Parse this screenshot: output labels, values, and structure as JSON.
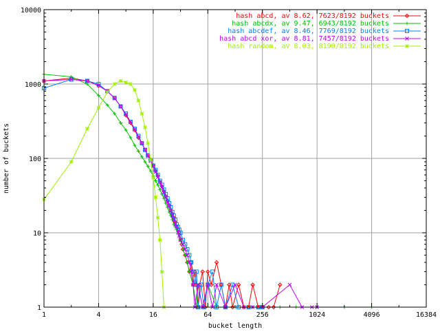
{
  "chart_data": {
    "type": "line",
    "xlabel": "bucket length",
    "ylabel": "number of buckets",
    "xscale": "log2",
    "yscale": "log10",
    "xlim": [
      1,
      16384
    ],
    "ylim": [
      1,
      10000
    ],
    "x_ticks": [
      "1",
      "4",
      "16",
      "64",
      "256",
      "1024",
      "4096",
      "16384"
    ],
    "y_ticks": [
      "1",
      "10",
      "100",
      "1000",
      "10000"
    ],
    "grid": true,
    "legend_position": "top-right",
    "series": [
      {
        "name": "hash abcd, av 8.62, 7623/8192 buckets",
        "color": "#ff0000",
        "marker": "diamond",
        "points": [
          [
            1,
            1100
          ],
          [
            2,
            1200
          ],
          [
            3,
            1100
          ],
          [
            4,
            950
          ],
          [
            5,
            800
          ],
          [
            6,
            650
          ],
          [
            7,
            500
          ],
          [
            8,
            380
          ],
          [
            9,
            300
          ],
          [
            10,
            240
          ],
          [
            11,
            190
          ],
          [
            12,
            160
          ],
          [
            13,
            130
          ],
          [
            14,
            110
          ],
          [
            15,
            95
          ],
          [
            16,
            80
          ],
          [
            17,
            68
          ],
          [
            18,
            58
          ],
          [
            19,
            48
          ],
          [
            20,
            42
          ],
          [
            21,
            36
          ],
          [
            22,
            31
          ],
          [
            23,
            27
          ],
          [
            24,
            23
          ],
          [
            25,
            20
          ],
          [
            26,
            18
          ],
          [
            27,
            16
          ],
          [
            28,
            14
          ],
          [
            29,
            12
          ],
          [
            30,
            11
          ],
          [
            31,
            10
          ],
          [
            32,
            8
          ],
          [
            33,
            7
          ],
          [
            34,
            6
          ],
          [
            36,
            5
          ],
          [
            38,
            4
          ],
          [
            40,
            3
          ],
          [
            42,
            4
          ],
          [
            44,
            2
          ],
          [
            46,
            3
          ],
          [
            48,
            2
          ],
          [
            50,
            1
          ],
          [
            52,
            2
          ],
          [
            56,
            3
          ],
          [
            60,
            1
          ],
          [
            64,
            3
          ],
          [
            70,
            2
          ],
          [
            80,
            4
          ],
          [
            90,
            2
          ],
          [
            100,
            1
          ],
          [
            110,
            2
          ],
          [
            120,
            1
          ],
          [
            140,
            2
          ],
          [
            160,
            1
          ],
          [
            180,
            1
          ],
          [
            200,
            2
          ],
          [
            230,
            1
          ],
          [
            260,
            1
          ],
          [
            300,
            1
          ],
          [
            340,
            1
          ],
          [
            400,
            2
          ]
        ]
      },
      {
        "name": "hash abcdx, av 9.47, 6943/8192 buckets",
        "color": "#00c000",
        "marker": "plus",
        "points": [
          [
            1,
            1350
          ],
          [
            2,
            1250
          ],
          [
            3,
            1000
          ],
          [
            4,
            700
          ],
          [
            5,
            520
          ],
          [
            6,
            400
          ],
          [
            7,
            300
          ],
          [
            8,
            240
          ],
          [
            9,
            190
          ],
          [
            10,
            150
          ],
          [
            11,
            125
          ],
          [
            12,
            105
          ],
          [
            13,
            90
          ],
          [
            14,
            78
          ],
          [
            15,
            68
          ],
          [
            16,
            58
          ],
          [
            17,
            50
          ],
          [
            18,
            44
          ],
          [
            19,
            38
          ],
          [
            20,
            33
          ],
          [
            21,
            29
          ],
          [
            22,
            25
          ],
          [
            23,
            22
          ],
          [
            24,
            19
          ],
          [
            25,
            17
          ],
          [
            26,
            15
          ],
          [
            27,
            13
          ],
          [
            28,
            12
          ],
          [
            29,
            11
          ],
          [
            30,
            10
          ],
          [
            31,
            9
          ],
          [
            32,
            8
          ],
          [
            34,
            6
          ],
          [
            36,
            5
          ],
          [
            38,
            4
          ],
          [
            40,
            3
          ],
          [
            44,
            2
          ],
          [
            48,
            1
          ],
          [
            50,
            2
          ],
          [
            56,
            1
          ],
          [
            64,
            2
          ],
          [
            80,
            1
          ],
          [
            100,
            1
          ],
          [
            128,
            1
          ],
          [
            200,
            1
          ],
          [
            256,
            1
          ],
          [
            400,
            1
          ],
          [
            600,
            1
          ],
          [
            1024,
            1
          ],
          [
            2048,
            1
          ],
          [
            4096,
            1
          ]
        ]
      },
      {
        "name": "hash abcdef, av 8.46, 7769/8192 buckets",
        "color": "#0080ff",
        "marker": "square",
        "points": [
          [
            1,
            880
          ],
          [
            2,
            1150
          ],
          [
            3,
            1100
          ],
          [
            4,
            1000
          ],
          [
            5,
            800
          ],
          [
            6,
            650
          ],
          [
            7,
            500
          ],
          [
            8,
            400
          ],
          [
            9,
            310
          ],
          [
            10,
            250
          ],
          [
            11,
            200
          ],
          [
            12,
            160
          ],
          [
            13,
            130
          ],
          [
            14,
            110
          ],
          [
            15,
            95
          ],
          [
            16,
            80
          ],
          [
            17,
            70
          ],
          [
            18,
            60
          ],
          [
            19,
            50
          ],
          [
            20,
            44
          ],
          [
            21,
            38
          ],
          [
            22,
            33
          ],
          [
            23,
            29
          ],
          [
            24,
            25
          ],
          [
            25,
            22
          ],
          [
            26,
            19
          ],
          [
            27,
            17
          ],
          [
            28,
            15
          ],
          [
            29,
            13
          ],
          [
            30,
            12
          ],
          [
            31,
            11
          ],
          [
            32,
            10
          ],
          [
            34,
            8
          ],
          [
            36,
            7
          ],
          [
            38,
            6
          ],
          [
            40,
            5
          ],
          [
            42,
            4
          ],
          [
            44,
            3
          ],
          [
            46,
            2
          ],
          [
            48,
            3
          ],
          [
            50,
            1
          ],
          [
            54,
            2
          ],
          [
            58,
            1
          ],
          [
            64,
            2
          ],
          [
            72,
            3
          ],
          [
            80,
            1
          ],
          [
            90,
            2
          ],
          [
            100,
            1
          ],
          [
            120,
            2
          ],
          [
            140,
            1
          ],
          [
            180,
            1
          ],
          [
            230,
            1
          ],
          [
            256,
            1
          ]
        ]
      },
      {
        "name": "hash abcd xor, av 8.81, 7457/8192 buckets",
        "color": "#c000ff",
        "marker": "cross",
        "points": [
          [
            1,
            1100
          ],
          [
            2,
            1150
          ],
          [
            3,
            1100
          ],
          [
            4,
            960
          ],
          [
            5,
            800
          ],
          [
            6,
            640
          ],
          [
            7,
            500
          ],
          [
            8,
            390
          ],
          [
            9,
            310
          ],
          [
            10,
            245
          ],
          [
            11,
            195
          ],
          [
            12,
            160
          ],
          [
            13,
            130
          ],
          [
            14,
            108
          ],
          [
            15,
            92
          ],
          [
            16,
            78
          ],
          [
            17,
            66
          ],
          [
            18,
            56
          ],
          [
            19,
            48
          ],
          [
            20,
            41
          ],
          [
            21,
            35
          ],
          [
            22,
            30
          ],
          [
            23,
            26
          ],
          [
            24,
            23
          ],
          [
            25,
            20
          ],
          [
            26,
            17
          ],
          [
            27,
            15
          ],
          [
            28,
            13
          ],
          [
            29,
            12
          ],
          [
            30,
            10
          ],
          [
            31,
            9
          ],
          [
            32,
            8
          ],
          [
            34,
            7
          ],
          [
            36,
            6
          ],
          [
            38,
            5
          ],
          [
            40,
            4
          ],
          [
            42,
            3
          ],
          [
            44,
            2
          ],
          [
            46,
            1
          ],
          [
            50,
            2
          ],
          [
            56,
            1
          ],
          [
            64,
            2
          ],
          [
            72,
            1
          ],
          [
            80,
            2
          ],
          [
            100,
            1
          ],
          [
            128,
            2
          ],
          [
            160,
            1
          ],
          [
            200,
            1
          ],
          [
            256,
            1
          ],
          [
            512,
            2
          ],
          [
            700,
            1
          ],
          [
            900,
            1
          ],
          [
            1024,
            1
          ]
        ]
      },
      {
        "name": "hash random, av 8.03, 8190/8192 buckets",
        "color": "#a0f000",
        "marker": "star",
        "points": [
          [
            1,
            28
          ],
          [
            2,
            90
          ],
          [
            3,
            250
          ],
          [
            4,
            480
          ],
          [
            5,
            780
          ],
          [
            6,
            1000
          ],
          [
            7,
            1100
          ],
          [
            8,
            1050
          ],
          [
            9,
            1000
          ],
          [
            10,
            830
          ],
          [
            11,
            600
          ],
          [
            12,
            400
          ],
          [
            13,
            260
          ],
          [
            14,
            160
          ],
          [
            15,
            95
          ],
          [
            16,
            55
          ],
          [
            17,
            30
          ],
          [
            18,
            16
          ],
          [
            19,
            8
          ],
          [
            20,
            3
          ],
          [
            21,
            1
          ]
        ]
      }
    ]
  }
}
